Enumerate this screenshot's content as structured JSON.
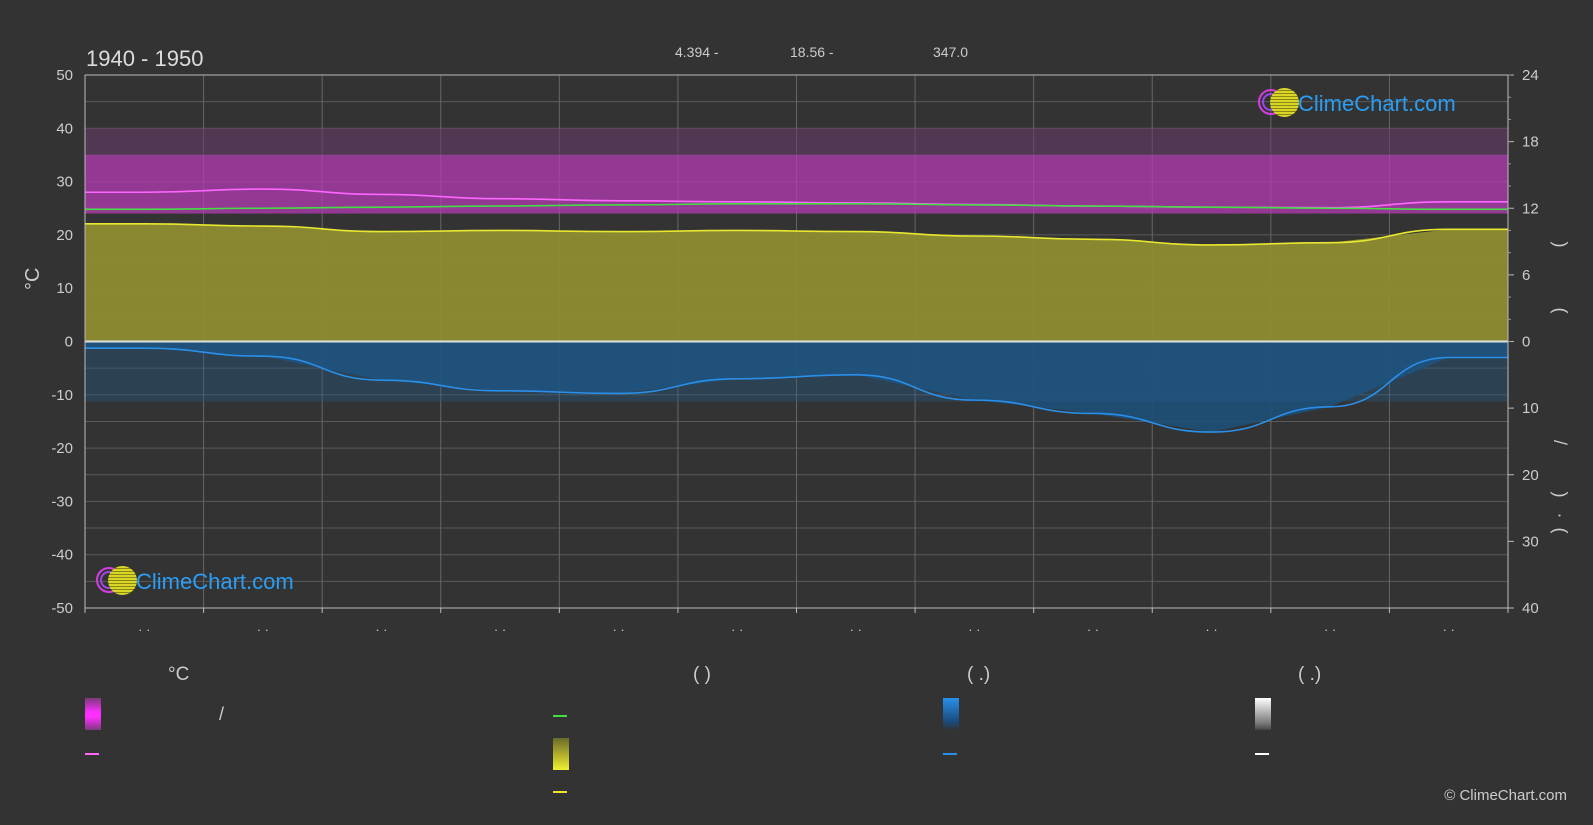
{
  "header": {
    "period": "1940 - 1950",
    "stats": [
      "4.394 -",
      "18.56 -",
      "347.0"
    ]
  },
  "axis_titles": {
    "left": "°C",
    "right_glyphs": [
      "(",
      ")",
      "/",
      "(",
      "·",
      ")"
    ]
  },
  "logo": {
    "text": "ClimeChart.com"
  },
  "legend": {
    "headers": [
      "°C",
      "(           )",
      "(    .)",
      "(    .)"
    ],
    "slash": "/",
    "items": [
      {
        "name": "temp-range-swatch",
        "color": "#ff2fff"
      },
      {
        "name": "avg-max-temp-line",
        "color": "#ff66ff"
      },
      {
        "name": "daylight-line",
        "color": "#44dd44"
      },
      {
        "name": "sunshine-swatch",
        "color": "#e8e830"
      },
      {
        "name": "sunshine-line",
        "color": "#e8e830"
      },
      {
        "name": "rain-swatch",
        "color": "#2a8fe8"
      },
      {
        "name": "rain-line",
        "color": "#2a8fe8"
      },
      {
        "name": "snow-swatch",
        "color": "#ffffff"
      },
      {
        "name": "snow-line",
        "color": "#ffffff"
      }
    ]
  },
  "copyright": "© ClimeChart.com",
  "chart_data": {
    "type": "area",
    "x_tick_labels": [
      "· ·",
      "· ·",
      "· ·",
      "· ·",
      "· ·",
      "· ·",
      "· ·",
      "· ·",
      "· ·",
      "· ·",
      "· ·",
      "· ·"
    ],
    "y_left": {
      "label": "°C",
      "range": [
        -50,
        50
      ],
      "ticks": [
        50,
        40,
        30,
        20,
        10,
        0,
        -10,
        -20,
        -30,
        -40,
        -50
      ]
    },
    "y_right_top": {
      "range": [
        0,
        24
      ],
      "ticks": [
        24,
        18,
        12,
        6,
        0
      ],
      "unit": "hours"
    },
    "y_right_bottom": {
      "range": [
        0,
        40
      ],
      "ticks": [
        0,
        10,
        20,
        30,
        40
      ],
      "unit": "mm"
    },
    "grid": true,
    "series": [
      {
        "key": "max_temp",
        "color": "#ff66ff",
        "unit": "°C",
        "values": [
          28.0,
          28.6,
          27.6,
          26.8,
          26.4,
          26.2,
          26.0,
          25.7,
          25.4,
          25.2,
          25.1,
          26.2
        ]
      },
      {
        "key": "daylight",
        "color": "#44dd44",
        "unit": "hours",
        "values": [
          11.9,
          12.0,
          12.1,
          12.2,
          12.3,
          12.4,
          12.4,
          12.3,
          12.2,
          12.1,
          12.0,
          11.9
        ]
      },
      {
        "key": "sunshine",
        "color": "#e8e830",
        "unit": "hours",
        "values": [
          10.6,
          10.4,
          9.9,
          10.0,
          9.9,
          10.0,
          9.9,
          9.5,
          9.2,
          8.7,
          8.9,
          10.1
        ]
      },
      {
        "key": "rain",
        "color": "#2a8fe8",
        "unit": "mm",
        "values": [
          1.0,
          2.2,
          5.8,
          7.4,
          7.8,
          5.6,
          5.0,
          8.8,
          10.8,
          13.6,
          9.8,
          2.4
        ]
      }
    ],
    "temp_band": {
      "top": 35,
      "bottom": 24
    }
  }
}
